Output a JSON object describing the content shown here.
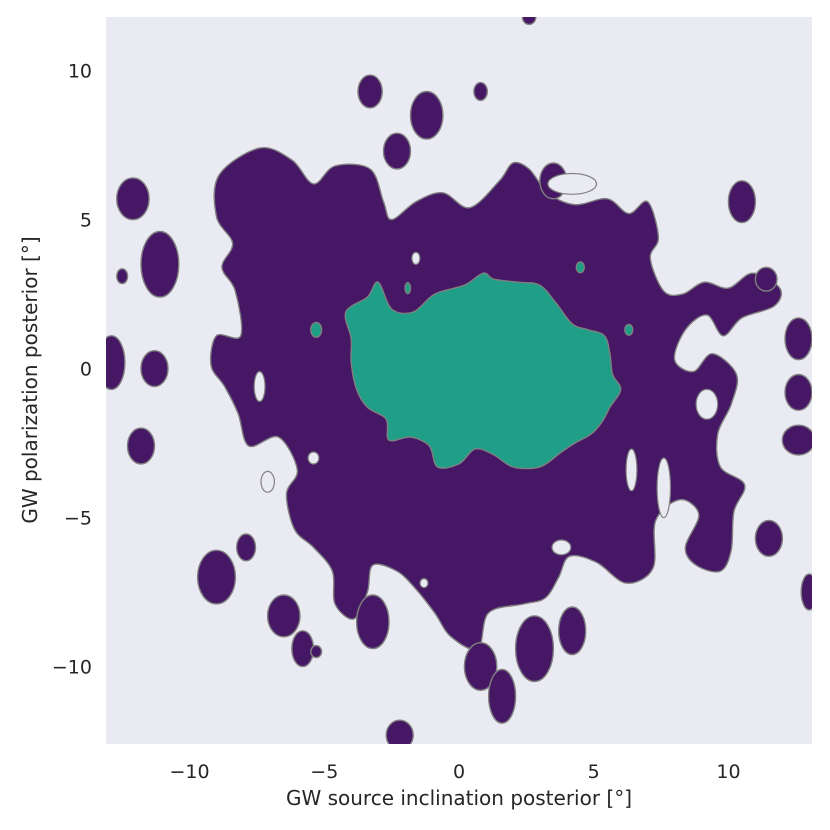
{
  "chart_data": {
    "type": "contour",
    "xlabel": "GW source inclination posterior [°]",
    "ylabel": "GW polarization posterior [°]",
    "xlim": [
      -13.1,
      13.1
    ],
    "ylim": [
      -12.6,
      11.8
    ],
    "x_ticks": [
      -10,
      -5,
      0,
      5,
      10
    ],
    "y_ticks": [
      -10,
      -5,
      0,
      5,
      10
    ],
    "x_tick_labels": [
      "−10",
      "−5",
      "0",
      "5",
      "10"
    ],
    "y_tick_labels": [
      "−10",
      "−5",
      "0",
      "5",
      "10"
    ],
    "grid": false,
    "legend": "none",
    "colors": {
      "background": "#eaeaf2",
      "outer_level": "#451764",
      "inner_level": "#1f9e88",
      "contour_edge": "#808080"
    },
    "levels": [
      {
        "name": "outer",
        "fill": "#451764",
        "main_region": [
          [
            -8.9,
            6.5
          ],
          [
            -7.4,
            7.4
          ],
          [
            -6.2,
            7.0
          ],
          [
            -5.4,
            6.2
          ],
          [
            -4.6,
            6.8
          ],
          [
            -3.3,
            6.7
          ],
          [
            -2.8,
            5.6
          ],
          [
            -2.5,
            5.0
          ],
          [
            -1.6,
            5.6
          ],
          [
            -0.6,
            5.9
          ],
          [
            0.4,
            5.4
          ],
          [
            1.5,
            6.3
          ],
          [
            2.0,
            6.9
          ],
          [
            2.6,
            6.7
          ],
          [
            3.3,
            5.9
          ],
          [
            4.3,
            5.5
          ],
          [
            5.5,
            5.7
          ],
          [
            6.3,
            5.2
          ],
          [
            7.0,
            5.6
          ],
          [
            7.4,
            4.4
          ],
          [
            7.1,
            3.7
          ],
          [
            7.6,
            2.6
          ],
          [
            8.3,
            2.5
          ],
          [
            9.1,
            2.9
          ],
          [
            10.0,
            2.7
          ],
          [
            10.9,
            3.2
          ],
          [
            11.9,
            2.7
          ],
          [
            11.7,
            2.1
          ],
          [
            10.5,
            1.7
          ],
          [
            9.8,
            1.1
          ],
          [
            9.2,
            1.8
          ],
          [
            8.4,
            1.3
          ],
          [
            8.0,
            0.3
          ],
          [
            8.7,
            -0.1
          ],
          [
            9.4,
            0.5
          ],
          [
            10.3,
            -0.2
          ],
          [
            10.1,
            -1.2
          ],
          [
            9.6,
            -2.2
          ],
          [
            9.7,
            -3.3
          ],
          [
            10.6,
            -3.9
          ],
          [
            10.2,
            -4.8
          ],
          [
            10.1,
            -6.1
          ],
          [
            9.7,
            -6.8
          ],
          [
            8.8,
            -6.6
          ],
          [
            8.4,
            -6.0
          ],
          [
            8.9,
            -4.9
          ],
          [
            8.2,
            -4.4
          ],
          [
            7.3,
            -5.1
          ],
          [
            7.2,
            -6.7
          ],
          [
            6.2,
            -7.2
          ],
          [
            5.1,
            -6.5
          ],
          [
            4.1,
            -6.3
          ],
          [
            3.7,
            -7.0
          ],
          [
            3.2,
            -7.7
          ],
          [
            2.4,
            -7.9
          ],
          [
            1.1,
            -8.2
          ],
          [
            0.7,
            -9.4
          ],
          [
            -0.3,
            -9.0
          ],
          [
            -0.9,
            -8.2
          ],
          [
            -1.6,
            -7.4
          ],
          [
            -2.3,
            -6.8
          ],
          [
            -3.2,
            -6.6
          ],
          [
            -3.4,
            -7.5
          ],
          [
            -3.9,
            -8.4
          ],
          [
            -4.6,
            -7.9
          ],
          [
            -4.7,
            -6.8
          ],
          [
            -5.4,
            -6.0
          ],
          [
            -6.1,
            -5.4
          ],
          [
            -6.4,
            -4.2
          ],
          [
            -6.0,
            -3.4
          ],
          [
            -6.7,
            -2.3
          ],
          [
            -7.8,
            -2.6
          ],
          [
            -8.2,
            -1.5
          ],
          [
            -8.7,
            -0.6
          ],
          [
            -9.2,
            0.1
          ],
          [
            -9.0,
            1.1
          ],
          [
            -8.1,
            1.1
          ],
          [
            -8.3,
            2.6
          ],
          [
            -8.8,
            3.4
          ],
          [
            -8.4,
            4.2
          ],
          [
            -9.0,
            5.1
          ]
        ],
        "blobs": [
          {
            "x": -12.1,
            "y": 5.7,
            "rx": 0.6,
            "ry": 0.7
          },
          {
            "x": -11.1,
            "y": 3.5,
            "rx": 0.7,
            "ry": 1.1
          },
          {
            "x": -12.5,
            "y": 3.1,
            "rx": 0.2,
            "ry": 0.25
          },
          {
            "x": -11.3,
            "y": 0.0,
            "rx": 0.5,
            "ry": 0.6
          },
          {
            "x": -12.9,
            "y": 0.2,
            "rx": 0.5,
            "ry": 0.9
          },
          {
            "x": -11.8,
            "y": -2.6,
            "rx": 0.5,
            "ry": 0.6
          },
          {
            "x": -3.3,
            "y": 9.3,
            "rx": 0.45,
            "ry": 0.55
          },
          {
            "x": -1.2,
            "y": 8.5,
            "rx": 0.6,
            "ry": 0.8
          },
          {
            "x": 0.8,
            "y": 9.3,
            "rx": 0.25,
            "ry": 0.3
          },
          {
            "x": 2.6,
            "y": 11.8,
            "rx": 0.25,
            "ry": 0.25
          },
          {
            "x": -2.3,
            "y": 7.3,
            "rx": 0.5,
            "ry": 0.6
          },
          {
            "x": 10.5,
            "y": 5.6,
            "rx": 0.5,
            "ry": 0.7
          },
          {
            "x": 11.4,
            "y": 3.0,
            "rx": 0.4,
            "ry": 0.4
          },
          {
            "x": 12.6,
            "y": 1.0,
            "rx": 0.5,
            "ry": 0.7
          },
          {
            "x": 12.6,
            "y": -0.8,
            "rx": 0.5,
            "ry": 0.6
          },
          {
            "x": 12.6,
            "y": -2.4,
            "rx": 0.6,
            "ry": 0.5
          },
          {
            "x": 11.5,
            "y": -5.7,
            "rx": 0.5,
            "ry": 0.6
          },
          {
            "x": 13.0,
            "y": -7.5,
            "rx": 0.3,
            "ry": 0.6
          },
          {
            "x": -6.5,
            "y": -8.3,
            "rx": 0.6,
            "ry": 0.7
          },
          {
            "x": -5.8,
            "y": -9.4,
            "rx": 0.4,
            "ry": 0.6
          },
          {
            "x": -9.0,
            "y": -7.0,
            "rx": 0.7,
            "ry": 0.9
          },
          {
            "x": -7.9,
            "y": -6.0,
            "rx": 0.35,
            "ry": 0.45
          },
          {
            "x": -3.2,
            "y": -8.5,
            "rx": 0.6,
            "ry": 0.9
          },
          {
            "x": -2.2,
            "y": -12.3,
            "rx": 0.5,
            "ry": 0.5
          },
          {
            "x": 0.8,
            "y": -10.0,
            "rx": 0.6,
            "ry": 0.8
          },
          {
            "x": 1.6,
            "y": -11.0,
            "rx": 0.5,
            "ry": 0.9
          },
          {
            "x": 2.8,
            "y": -9.4,
            "rx": 0.7,
            "ry": 1.1
          },
          {
            "x": 4.2,
            "y": -8.8,
            "rx": 0.5,
            "ry": 0.8
          },
          {
            "x": -5.3,
            "y": -9.5,
            "rx": 0.2,
            "ry": 0.2
          },
          {
            "x": 3.5,
            "y": 6.3,
            "rx": 0.5,
            "ry": 0.6
          }
        ],
        "holes": [
          {
            "x": 4.2,
            "y": 6.2,
            "rx": 0.9,
            "ry": 0.35
          },
          {
            "x": 7.6,
            "y": -4.0,
            "rx": 0.25,
            "ry": 1.0
          },
          {
            "x": 6.4,
            "y": -3.4,
            "rx": 0.2,
            "ry": 0.7
          },
          {
            "x": -7.4,
            "y": -0.6,
            "rx": 0.2,
            "ry": 0.5
          },
          {
            "x": -7.1,
            "y": -3.8,
            "rx": 0.25,
            "ry": 0.35
          },
          {
            "x": -5.4,
            "y": -3.0,
            "rx": 0.2,
            "ry": 0.2
          },
          {
            "x": 9.2,
            "y": -1.2,
            "rx": 0.4,
            "ry": 0.5
          },
          {
            "x": -1.6,
            "y": 3.7,
            "rx": 0.15,
            "ry": 0.2
          },
          {
            "x": -1.3,
            "y": -7.2,
            "rx": 0.15,
            "ry": 0.15
          },
          {
            "x": 3.8,
            "y": -6.0,
            "rx": 0.35,
            "ry": 0.25
          }
        ]
      },
      {
        "name": "inner",
        "fill": "#1f9e88",
        "main_region": [
          [
            -4.2,
            1.9
          ],
          [
            -3.4,
            2.4
          ],
          [
            -3.0,
            2.9
          ],
          [
            -2.5,
            2.0
          ],
          [
            -1.7,
            1.9
          ],
          [
            -0.9,
            2.5
          ],
          [
            0.2,
            2.8
          ],
          [
            0.9,
            3.2
          ],
          [
            1.3,
            3.0
          ],
          [
            2.2,
            2.9
          ],
          [
            3.0,
            2.8
          ],
          [
            3.6,
            2.2
          ],
          [
            4.2,
            1.5
          ],
          [
            4.8,
            1.3
          ],
          [
            5.4,
            1.1
          ],
          [
            5.6,
            0.5
          ],
          [
            5.7,
            -0.2
          ],
          [
            6.0,
            -0.7
          ],
          [
            5.6,
            -1.3
          ],
          [
            5.3,
            -1.8
          ],
          [
            4.9,
            -2.2
          ],
          [
            4.3,
            -2.5
          ],
          [
            3.8,
            -2.8
          ],
          [
            3.0,
            -3.3
          ],
          [
            2.0,
            -3.3
          ],
          [
            1.3,
            -2.9
          ],
          [
            0.6,
            -2.7
          ],
          [
            0.0,
            -3.2
          ],
          [
            -0.8,
            -3.3
          ],
          [
            -1.1,
            -2.6
          ],
          [
            -1.8,
            -2.3
          ],
          [
            -2.6,
            -2.4
          ],
          [
            -2.7,
            -1.7
          ],
          [
            -3.4,
            -1.3
          ],
          [
            -3.8,
            -0.7
          ],
          [
            -4.0,
            0.2
          ],
          [
            -4.0,
            1.0
          ]
        ],
        "blobs": [
          {
            "x": -5.3,
            "y": 1.3,
            "rx": 0.2,
            "ry": 0.25
          },
          {
            "x": 4.5,
            "y": 3.4,
            "rx": 0.15,
            "ry": 0.18
          },
          {
            "x": 6.3,
            "y": 1.3,
            "rx": 0.15,
            "ry": 0.18
          },
          {
            "x": -1.9,
            "y": 2.7,
            "rx": 0.1,
            "ry": 0.18
          }
        ]
      }
    ]
  }
}
